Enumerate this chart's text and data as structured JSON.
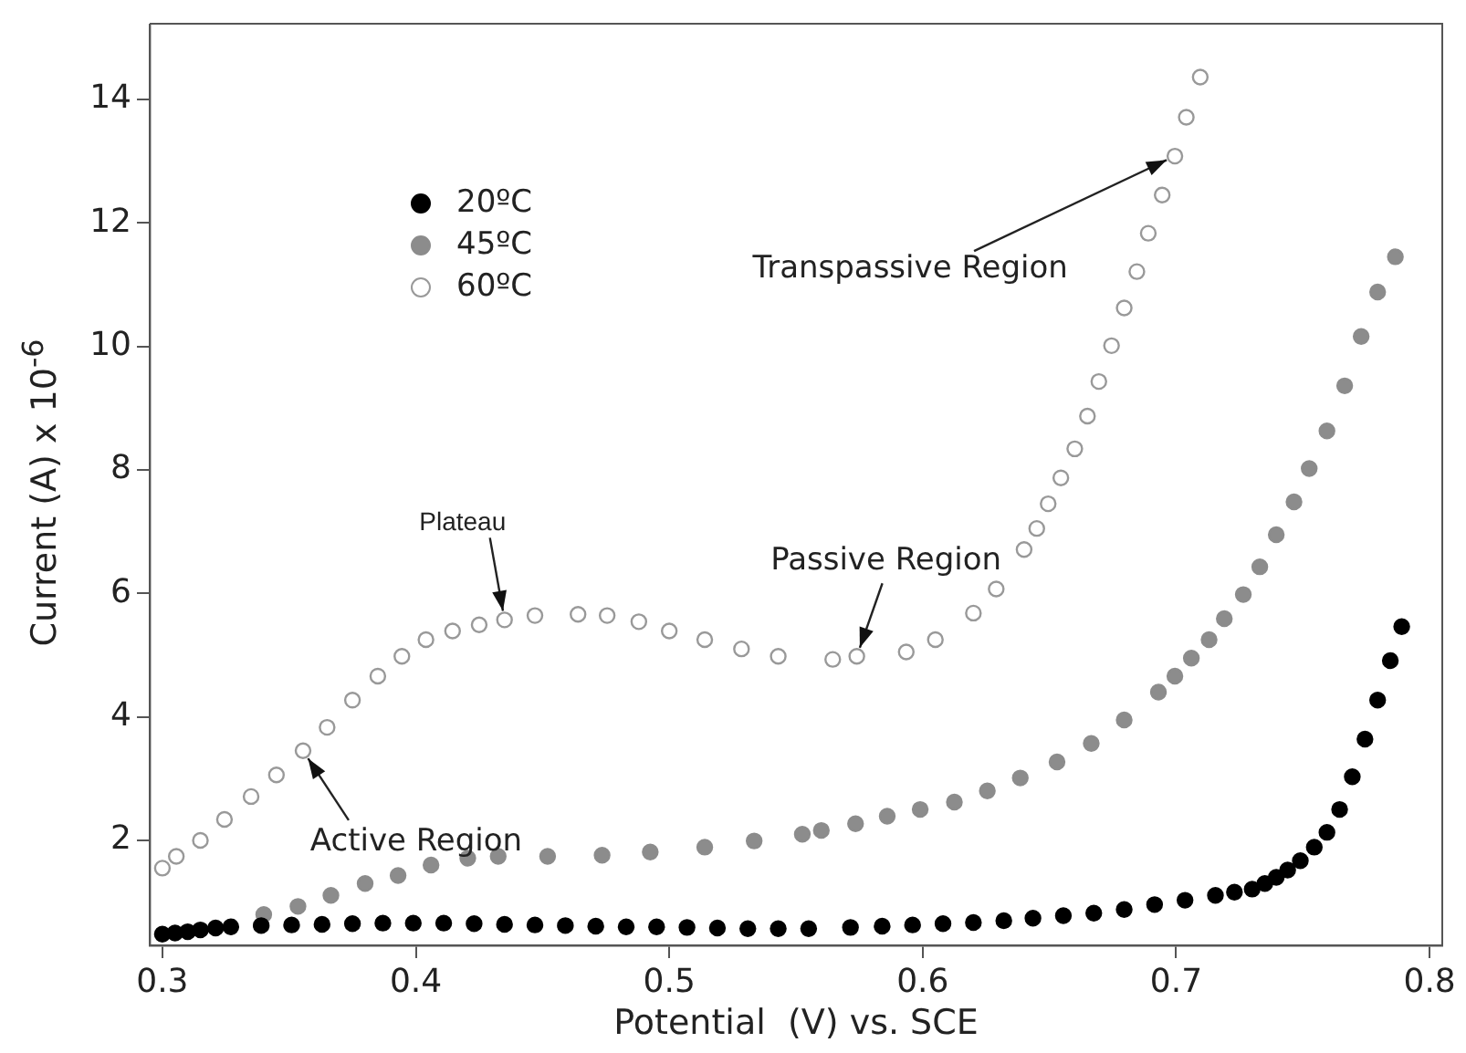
{
  "chart_data": {
    "type": "scatter",
    "xlabel": "Potential  (V) vs. SCE",
    "ylabel": "Current (A) x 10$^{-6}$",
    "xlim": [
      0.295,
      0.805
    ],
    "xticks": [
      0.3,
      0.4,
      0.5,
      0.6,
      0.7,
      0.8
    ],
    "ylim": [
      0.3,
      15.2
    ],
    "yticks": [
      2,
      4,
      6,
      8,
      10,
      12,
      14
    ],
    "grid": false,
    "legend": "top left",
    "marker": "circle",
    "annotations": [
      {
        "text": "Plateau",
        "x": 0.435,
        "y": 5.57
      },
      {
        "text": "Active Region",
        "x": 0.3555,
        "y": 3.45
      },
      {
        "text": "Passive Region",
        "x": 0.574,
        "y": 4.98
      },
      {
        "text": "Transpassive Region",
        "x": 0.6995,
        "y": 13.08
      }
    ],
    "series": [
      {
        "name": "20ºC",
        "color": "#000000",
        "x": [
          0.3,
          0.305,
          0.31,
          0.315,
          0.321,
          0.327,
          0.339,
          0.351,
          0.363,
          0.375,
          0.387,
          0.399,
          0.411,
          0.423,
          0.435,
          0.447,
          0.459,
          0.471,
          0.483,
          0.495,
          0.507,
          0.519,
          0.531,
          0.543,
          0.555,
          0.5715,
          0.584,
          0.596,
          0.608,
          0.62,
          0.632,
          0.6435,
          0.6555,
          0.6675,
          0.6795,
          0.6915,
          0.7035,
          0.7155,
          0.723,
          0.73,
          0.735,
          0.7395,
          0.744,
          0.749,
          0.7545,
          0.7595,
          0.7645,
          0.7695,
          0.7745,
          0.7795,
          0.7845,
          0.789
        ],
        "values": [
          0.48,
          0.5,
          0.52,
          0.55,
          0.58,
          0.6,
          0.62,
          0.63,
          0.64,
          0.65,
          0.66,
          0.66,
          0.66,
          0.65,
          0.64,
          0.63,
          0.62,
          0.61,
          0.6,
          0.6,
          0.59,
          0.58,
          0.57,
          0.57,
          0.57,
          0.59,
          0.61,
          0.63,
          0.65,
          0.67,
          0.7,
          0.74,
          0.78,
          0.82,
          0.88,
          0.96,
          1.03,
          1.11,
          1.16,
          1.21,
          1.3,
          1.4,
          1.52,
          1.67,
          1.89,
          2.13,
          2.5,
          3.03,
          3.64,
          4.27,
          4.91,
          5.46
        ]
      },
      {
        "name": "45ºC",
        "color": "#8c8c8c",
        "x": [
          0.34,
          0.3535,
          0.3665,
          0.38,
          0.393,
          0.406,
          0.4205,
          0.4325,
          0.452,
          0.4735,
          0.4925,
          0.514,
          0.5335,
          0.5525,
          0.56,
          0.5735,
          0.586,
          0.599,
          0.6125,
          0.6255,
          0.6385,
          0.653,
          0.6665,
          0.6795,
          0.693,
          0.6995,
          0.706,
          0.713,
          0.719,
          0.7265,
          0.733,
          0.7395,
          0.7465,
          0.7525,
          0.7595,
          0.7665,
          0.773,
          0.7795,
          0.7865
        ],
        "values": [
          0.8,
          0.93,
          1.11,
          1.3,
          1.43,
          1.6,
          1.71,
          1.74,
          1.74,
          1.76,
          1.81,
          1.89,
          1.99,
          2.1,
          2.16,
          2.27,
          2.39,
          2.5,
          2.62,
          2.8,
          3.01,
          3.27,
          3.57,
          3.95,
          4.4,
          4.66,
          4.95,
          5.25,
          5.59,
          5.98,
          6.43,
          6.95,
          7.48,
          8.02,
          8.63,
          9.36,
          10.16,
          10.88,
          11.45
        ]
      },
      {
        "name": "60ºC",
        "color": "#999999",
        "x": [
          0.3,
          0.3055,
          0.315,
          0.3245,
          0.335,
          0.345,
          0.3555,
          0.365,
          0.375,
          0.385,
          0.3945,
          0.404,
          0.4145,
          0.425,
          0.435,
          0.447,
          0.464,
          0.4755,
          0.488,
          0.5,
          0.514,
          0.5285,
          0.543,
          0.5645,
          0.574,
          0.5935,
          0.605,
          0.62,
          0.629,
          0.64,
          0.645,
          0.6495,
          0.6545,
          0.66,
          0.665,
          0.6695,
          0.6745,
          0.6795,
          0.6845,
          0.689,
          0.6945,
          0.6995,
          0.704,
          0.7095
        ],
        "values": [
          1.55,
          1.74,
          2.0,
          2.34,
          2.71,
          3.06,
          3.45,
          3.83,
          4.27,
          4.66,
          4.98,
          5.25,
          5.39,
          5.49,
          5.57,
          5.64,
          5.66,
          5.64,
          5.54,
          5.39,
          5.25,
          5.1,
          4.98,
          4.93,
          4.98,
          5.05,
          5.25,
          5.68,
          6.07,
          6.71,
          7.05,
          7.45,
          7.87,
          8.34,
          8.87,
          9.43,
          10.01,
          10.62,
          11.21,
          11.83,
          12.45,
          13.08,
          13.71,
          14.36
        ]
      }
    ]
  }
}
